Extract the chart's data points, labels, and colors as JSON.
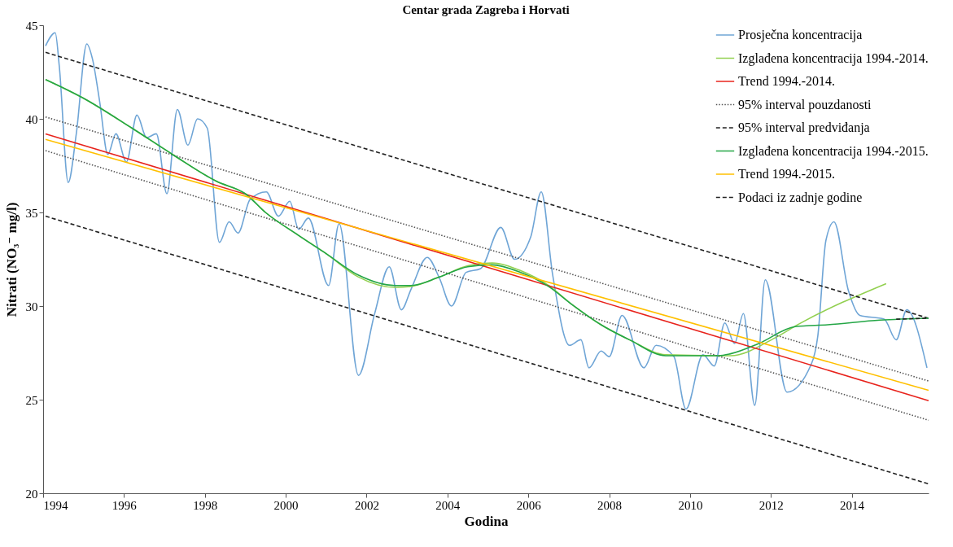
{
  "chart_data": {
    "type": "line",
    "title": "Centar grada Zagreba i Horvati",
    "xlabel": "Godina",
    "ylabel": "Nitrati (NO₃⁻ mg/l)",
    "xlim": [
      1994,
      2015.9
    ],
    "ylim": [
      20,
      45
    ],
    "xticks": [
      1994,
      1996,
      1998,
      2000,
      2002,
      2004,
      2006,
      2008,
      2010,
      2012,
      2014
    ],
    "yticks": [
      20,
      25,
      30,
      35,
      40,
      45
    ],
    "grid": false,
    "legend": "top right",
    "marker": "none",
    "series": [
      {
        "name": "Prosječna koncentracija",
        "color": "#6fa5d6",
        "line_style": "solid",
        "x": [
          1994.06,
          1994.3,
          1994.4,
          1994.62,
          1994.82,
          1995.08,
          1995.22,
          1995.4,
          1995.6,
          1995.8,
          1996.06,
          1996.32,
          1996.56,
          1996.8,
          1997.06,
          1997.32,
          1997.58,
          1997.82,
          1998.06,
          1998.36,
          1998.6,
          1998.82,
          1999.12,
          1999.52,
          1999.82,
          2000.1,
          2000.32,
          2000.56,
          2001.06,
          2001.32,
          2001.8,
          2002.2,
          2002.56,
          2002.86,
          2003.1,
          2003.5,
          2003.8,
          2004.1,
          2004.46,
          2004.82,
          2005.32,
          2005.66,
          2006.06,
          2006.32,
          2006.6,
          2007.02,
          2007.3,
          2007.5,
          2007.8,
          2008.0,
          2008.32,
          2008.86,
          2009.16,
          2009.6,
          2009.9,
          2010.32,
          2010.6,
          2010.86,
          2011.1,
          2011.32,
          2011.6,
          2011.86,
          2012.4,
          2013.0,
          2013.16,
          2013.36,
          2013.56,
          2013.92,
          2014.2,
          2014.8,
          2015.1,
          2015.36,
          2015.86
        ],
        "values": [
          43.9,
          44.6,
          42.8,
          36.6,
          39.2,
          44.0,
          43.2,
          40.9,
          38.1,
          39.2,
          37.7,
          40.2,
          39.0,
          39.2,
          36.0,
          40.5,
          38.6,
          40.0,
          39.5,
          33.4,
          34.5,
          33.9,
          35.7,
          36.1,
          34.8,
          35.6,
          34.1,
          34.7,
          31.1,
          34.4,
          26.3,
          29.6,
          32.1,
          29.8,
          30.9,
          32.6,
          31.5,
          30.0,
          31.8,
          32.0,
          34.2,
          32.5,
          33.7,
          36.1,
          31.7,
          27.9,
          28.2,
          26.7,
          27.6,
          27.3,
          29.5,
          26.7,
          27.9,
          27.3,
          24.5,
          27.4,
          26.8,
          29.1,
          28.0,
          29.6,
          24.7,
          31.4,
          25.4,
          26.9,
          28.4,
          33.5,
          34.5,
          30.8,
          29.5,
          29.3,
          28.2,
          29.8,
          26.7
        ]
      },
      {
        "name": "Izglađena koncentracija 1994.-2014.",
        "color": "#92d050",
        "line_style": "solid",
        "x": [
          1994.06,
          1995.0,
          1996.2,
          1997.2,
          1998.3,
          1999.0,
          1999.5,
          2000.3,
          2001.0,
          2001.8,
          2002.7,
          2003.1,
          2003.8,
          2004.5,
          2005.1,
          2005.8,
          2006.5,
          2007.1,
          2007.8,
          2008.5,
          2009.4,
          2010.7,
          2011.0,
          2012.1,
          2012.7,
          2014.85
        ],
        "values": [
          42.1,
          41.1,
          39.5,
          38.1,
          36.65,
          36.0,
          35.0,
          33.8,
          32.8,
          31.55,
          31.0,
          31.05,
          31.55,
          32.15,
          32.3,
          31.9,
          31.1,
          30.05,
          29.0,
          28.2,
          27.4,
          27.35,
          27.35,
          28.3,
          29.05,
          31.2
        ]
      },
      {
        "name": "Trend 1994.-2014.",
        "color": "#e8231c",
        "line_style": "solid",
        "x": [
          1994.06,
          2015.9
        ],
        "values": [
          39.2,
          24.95
        ]
      },
      {
        "name": "95% interval pouzdanosti",
        "color": "#555555",
        "line_style": "dotted",
        "x": [
          1994.06,
          2015.9
        ],
        "values": [
          40.1,
          26.0
        ]
      },
      {
        "color": "#555555",
        "line_style": "dotted",
        "x": [
          1994.06,
          2015.9
        ],
        "values": [
          38.3,
          23.9
        ]
      },
      {
        "name": "95% interval predviđanja",
        "color": "#222222",
        "line_style": "dashed",
        "x": [
          1994.06,
          2015.9
        ],
        "values": [
          43.55,
          29.35
        ]
      },
      {
        "color": "#222222",
        "line_style": "dashed",
        "x": [
          1994.06,
          2015.9
        ],
        "values": [
          34.8,
          20.5
        ]
      },
      {
        "name": "Izglađena koncentracija 1994.-2015.",
        "color": "#24a646",
        "line_style": "solid",
        "x": [
          1994.06,
          1995.0,
          1996.2,
          1997.2,
          1998.3,
          1999.0,
          1999.5,
          2000.3,
          2001.0,
          2001.8,
          2002.7,
          2003.1,
          2003.8,
          2004.5,
          2005.1,
          2005.8,
          2006.5,
          2007.1,
          2007.8,
          2008.5,
          2009.4,
          2010.7,
          2011.0,
          2011.7,
          2012.6,
          2013.4,
          2014.7,
          2015.9
        ],
        "values": [
          42.1,
          41.1,
          39.5,
          38.1,
          36.65,
          36.0,
          35.0,
          33.8,
          32.8,
          31.65,
          31.1,
          31.1,
          31.55,
          32.1,
          32.2,
          31.8,
          31.05,
          30.05,
          29.0,
          28.2,
          27.35,
          27.35,
          27.45,
          28.0,
          28.9,
          29.0,
          29.25,
          29.35
        ]
      },
      {
        "name": "Trend 1994.-2015.",
        "color": "#ffc000",
        "line_style": "solid",
        "x": [
          1994.06,
          2015.9
        ],
        "values": [
          38.9,
          25.5
        ]
      },
      {
        "name": "Podaci iz zadnje godine",
        "color": "#222222",
        "line_style": "dashed",
        "x": [
          2015.1,
          2015.9
        ],
        "values": [
          29.3,
          29.35
        ]
      }
    ]
  }
}
